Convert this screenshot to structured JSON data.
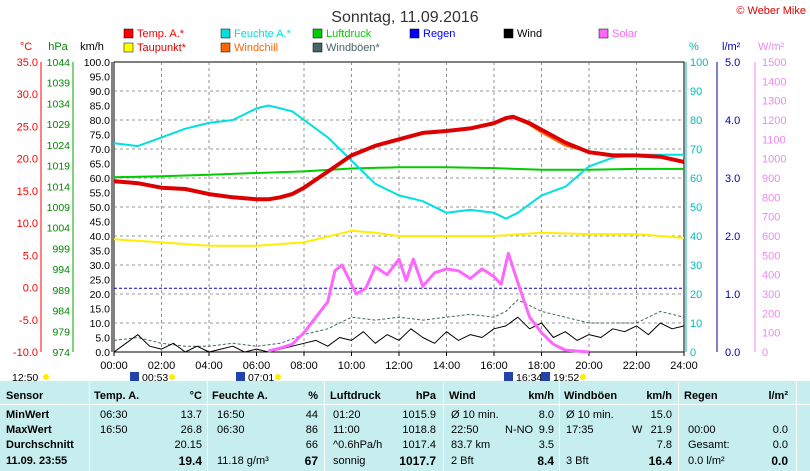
{
  "chart_data": {
    "type": "line",
    "title": "Sonntag, 11.09.2016",
    "copyright": "© Weber Mike",
    "x_ticks": [
      "00:00",
      "02:00",
      "04:00",
      "06:00",
      "08:00",
      "10:00",
      "12:00",
      "14:00",
      "16:00",
      "18:00",
      "20:00",
      "22:00",
      "24:00"
    ],
    "xlim": [
      0,
      24
    ],
    "axes": {
      "temp": {
        "unit": "°C",
        "ticks": [
          "35.0",
          "30.0",
          "25.0",
          "20.0",
          "15.0",
          "10.0",
          "5.0",
          "0.0",
          "-5.0",
          "-10.0"
        ],
        "ylim": [
          -10,
          35
        ],
        "color": "#ff0000"
      },
      "pressure": {
        "unit": "hPa",
        "ticks": [
          "1044",
          "1039",
          "1034",
          "1029",
          "1024",
          "1019",
          "1014",
          "1009",
          "1004",
          "999",
          "994",
          "989",
          "984",
          "979",
          "974"
        ],
        "ylim": [
          974,
          1044
        ],
        "color": "#008800"
      },
      "wind": {
        "unit": "km/h",
        "ticks": [
          "100.0",
          "95.0",
          "90.0",
          "85.0",
          "80.0",
          "75.0",
          "70.0",
          "65.0",
          "60.0",
          "55.0",
          "50.0",
          "45.0",
          "40.0",
          "35.0",
          "30.0",
          "25.0",
          "20.0",
          "15.0",
          "10.0",
          "5.0",
          "0.0"
        ],
        "ylim": [
          0,
          100
        ],
        "color": "#000000"
      },
      "humidity": {
        "unit": "%",
        "ticks": [
          "100",
          "90",
          "80",
          "70",
          "60",
          "50",
          "40",
          "30",
          "20",
          "10",
          "0"
        ],
        "ylim": [
          0,
          100
        ],
        "color": "#00bbbb"
      },
      "rain": {
        "unit": "l/m²",
        "ticks": [
          "5.0",
          "4.0",
          "3.0",
          "2.0",
          "1.0",
          "0.0"
        ],
        "ylim": [
          0,
          5
        ],
        "color": "#0000aa"
      },
      "solar": {
        "unit": "W/m²",
        "ticks": [
          "1500",
          "1400",
          "1300",
          "1200",
          "1100",
          "1000",
          "900",
          "800",
          "700",
          "600",
          "500",
          "400",
          "300",
          "200",
          "100",
          "0"
        ],
        "ylim": [
          0,
          1500
        ],
        "color": "#ee88ee"
      }
    },
    "legend": [
      {
        "label": "Temp. A.*",
        "color": "#ff0000"
      },
      {
        "label": "Feuchte A.*",
        "color": "#00e0e0"
      },
      {
        "label": "Luftdruck",
        "color": "#00cc00"
      },
      {
        "label": "Regen",
        "color": "#0000ff"
      },
      {
        "label": "Wind",
        "color": "#000000"
      },
      {
        "label": "Solar",
        "color": "#ff66ff"
      },
      {
        "label": "Taupunkt*",
        "color": "#ffff00"
      },
      {
        "label": "Windchill",
        "color": "#ff6600"
      },
      {
        "label": "Windböen*",
        "color": "#446666"
      }
    ],
    "series": [
      {
        "name": "Temp. A.*",
        "axis": "temp",
        "color": "#dd0000",
        "x": [
          0,
          1,
          2,
          3,
          4,
          5,
          6,
          6.5,
          7,
          7.5,
          8,
          9,
          10,
          11,
          12,
          13,
          14,
          15,
          16,
          16.5,
          16.8,
          17.5,
          18,
          19,
          20,
          21,
          22,
          23,
          24
        ],
        "y": [
          16.5,
          16.2,
          15.5,
          15.3,
          14.5,
          14.0,
          13.7,
          13.7,
          14.0,
          14.5,
          15.5,
          18.0,
          20.5,
          22.0,
          23.0,
          24.0,
          24.3,
          24.7,
          25.5,
          26.3,
          26.5,
          25.5,
          24.5,
          22.5,
          21.0,
          20.5,
          20.5,
          20.3,
          19.5
        ]
      },
      {
        "name": "Feuchte A.*",
        "axis": "humidity",
        "color": "#00e0e0",
        "x": [
          0,
          1,
          2,
          3,
          4,
          5,
          6,
          6.5,
          7,
          7.5,
          8,
          9,
          10,
          11,
          12,
          13,
          14,
          15,
          16,
          16.5,
          17,
          18,
          19,
          20,
          21,
          22,
          23,
          24
        ],
        "y": [
          72,
          71,
          74,
          77,
          79,
          80,
          84,
          85,
          84,
          83,
          80,
          74,
          66,
          58,
          54,
          52,
          48,
          49,
          48,
          46,
          48,
          54,
          57,
          64,
          67,
          68,
          68,
          68
        ]
      },
      {
        "name": "Luftdruck",
        "axis": "pressure",
        "color": "#00cc00",
        "x": [
          0,
          2,
          4,
          6,
          8,
          10,
          12,
          14,
          16,
          18,
          20,
          22,
          24
        ],
        "y": [
          1016.2,
          1016.4,
          1016.8,
          1017.2,
          1017.6,
          1018.3,
          1018.6,
          1018.6,
          1018.4,
          1018.0,
          1018.0,
          1018.2,
          1018.2
        ]
      },
      {
        "name": "Taupunkt*",
        "axis": "temp",
        "color": "#ffee00",
        "x": [
          0,
          2,
          4,
          6,
          8,
          10,
          11,
          12,
          14,
          16,
          18,
          20,
          22,
          24
        ],
        "y": [
          7.5,
          7.0,
          6.5,
          6.5,
          7.0,
          8.8,
          8.5,
          8.0,
          8.0,
          8.0,
          8.5,
          8.3,
          8.3,
          7.7
        ]
      },
      {
        "name": "Windchill",
        "axis": "temp",
        "color": "#ff6600",
        "x": [
          16.8,
          17.5,
          18,
          19,
          20,
          21,
          22,
          23,
          24
        ],
        "y": [
          26.5,
          25.2,
          24.0,
          22.0,
          21.0,
          20.5,
          20.5,
          20.3,
          19.5
        ]
      },
      {
        "name": "Solar",
        "axis": "solar",
        "color": "#ff66ff",
        "x": [
          6.5,
          7,
          7.5,
          8,
          8.5,
          9,
          9.3,
          9.6,
          9.8,
          10.2,
          10.6,
          11,
          11.5,
          12,
          12.3,
          12.6,
          13,
          13.5,
          14,
          14.5,
          15,
          15.5,
          16,
          16.3,
          16.6,
          17,
          17.5,
          18,
          18.5,
          19,
          20
        ],
        "y": [
          5,
          20,
          40,
          100,
          180,
          260,
          420,
          450,
          400,
          300,
          330,
          440,
          400,
          480,
          370,
          480,
          340,
          410,
          430,
          420,
          380,
          430,
          390,
          350,
          510,
          360,
          180,
          100,
          40,
          10,
          0
        ]
      },
      {
        "name": "Windböen*",
        "axis": "wind",
        "color": "#446666",
        "x": [
          0,
          1,
          2,
          3,
          4,
          5,
          6,
          7,
          8,
          9,
          10,
          11,
          12,
          13,
          14,
          15,
          16,
          16.5,
          17,
          18,
          19,
          20,
          21,
          22,
          23,
          24
        ],
        "y": [
          4,
          5,
          3,
          2,
          2,
          3,
          2,
          3,
          6,
          8,
          12,
          11,
          12,
          11,
          12,
          13,
          12,
          14,
          18,
          14,
          12,
          10,
          10,
          10,
          14,
          12
        ]
      },
      {
        "name": "Wind",
        "axis": "wind",
        "color": "#000000",
        "x": [
          0,
          0.5,
          1,
          1.5,
          2,
          2.5,
          3,
          3.5,
          4,
          4.5,
          5,
          5.5,
          6,
          6.5,
          7,
          7.5,
          8,
          8.5,
          9,
          9.5,
          10,
          10.5,
          11,
          11.5,
          12,
          12.5,
          13,
          13.5,
          14,
          14.5,
          15,
          15.5,
          16,
          16.5,
          17,
          17.5,
          18,
          18.5,
          19,
          19.5,
          20,
          20.5,
          21,
          21.5,
          22,
          22.5,
          23,
          23.5,
          24
        ],
        "y": [
          0,
          3,
          6,
          2,
          1,
          3,
          0,
          2,
          0,
          1,
          2,
          0,
          1,
          0,
          1,
          2,
          3,
          4,
          2,
          5,
          4,
          7,
          3,
          6,
          4,
          8,
          5,
          3,
          7,
          4,
          6,
          5,
          8,
          9,
          12,
          8,
          10,
          5,
          7,
          4,
          6,
          5,
          8,
          7,
          9,
          6,
          10,
          8,
          9
        ]
      },
      {
        "name": "Regen",
        "axis": "rain",
        "color": "#0000cc",
        "x": [
          0,
          24
        ],
        "y": [
          1.1,
          1.1
        ]
      }
    ],
    "markers_below": [
      {
        "label": "12:50",
        "x_label_only": true
      },
      {
        "label": "00:53"
      },
      {
        "label": "07:01"
      },
      {
        "label": "16:34"
      },
      {
        "label": "19:52"
      }
    ]
  },
  "table": {
    "headers": {
      "sensor": "Sensor",
      "temp": "Temp. A.",
      "temp_unit": "°C",
      "hum": "Feuchte A.",
      "hum_unit": "%",
      "pres": "Luftdruck",
      "pres_unit": "hPa",
      "wind": "Wind",
      "wind_unit": "km/h",
      "gust": "Windböen",
      "gust_unit": "km/h",
      "rain": "Regen",
      "rain_unit": "l/m²"
    },
    "rows": [
      {
        "label": "MinWert",
        "temp_t": "06:30",
        "temp_v": "13.7",
        "hum_t": "16:50",
        "hum_v": "44",
        "pres_t": "01:20",
        "pres_v": "1015.9",
        "wind_t": "Ø 10 min.",
        "wind_v": "8.0",
        "gust_t": "Ø 10 min.",
        "gust_v": "15.0",
        "rain_t": "",
        "rain_v": ""
      },
      {
        "label": "MaxWert",
        "temp_t": "16:50",
        "temp_v": "26.8",
        "hum_t": "06:30",
        "hum_v": "86",
        "pres_t": "11:00",
        "pres_v": "1018.8",
        "wind_t": "22:50",
        "wind_m": "N-NO",
        "wind_v": "9.9",
        "gust_t": "17:35",
        "gust_m": "W",
        "gust_v": "21.9",
        "rain_t": "00:00",
        "rain_v": "0.0"
      },
      {
        "label": "Durchschnitt",
        "temp_t": "",
        "temp_v": "20.15",
        "hum_t": "",
        "hum_v": "66",
        "pres_t": "^0.6hPa/h",
        "pres_v": "1017.4",
        "wind_t": "83.7 km",
        "wind_v": "3.5",
        "gust_t": "",
        "gust_v": "7.8",
        "rain_t": "Gesamt:",
        "rain_v": "0.0"
      },
      {
        "label": "11.09. 23:55",
        "temp_t": "",
        "temp_v": "19.4",
        "hum_t": "11.18 g/m³",
        "hum_v": "67",
        "pres_t": "sonnig",
        "pres_v": "1017.7",
        "wind_t": "2 Bft",
        "wind_v": "8.4",
        "gust_t": "3 Bft",
        "gust_v": "16.4",
        "rain_t": "0.0 l/m²",
        "rain_v": "0.0"
      }
    ]
  }
}
